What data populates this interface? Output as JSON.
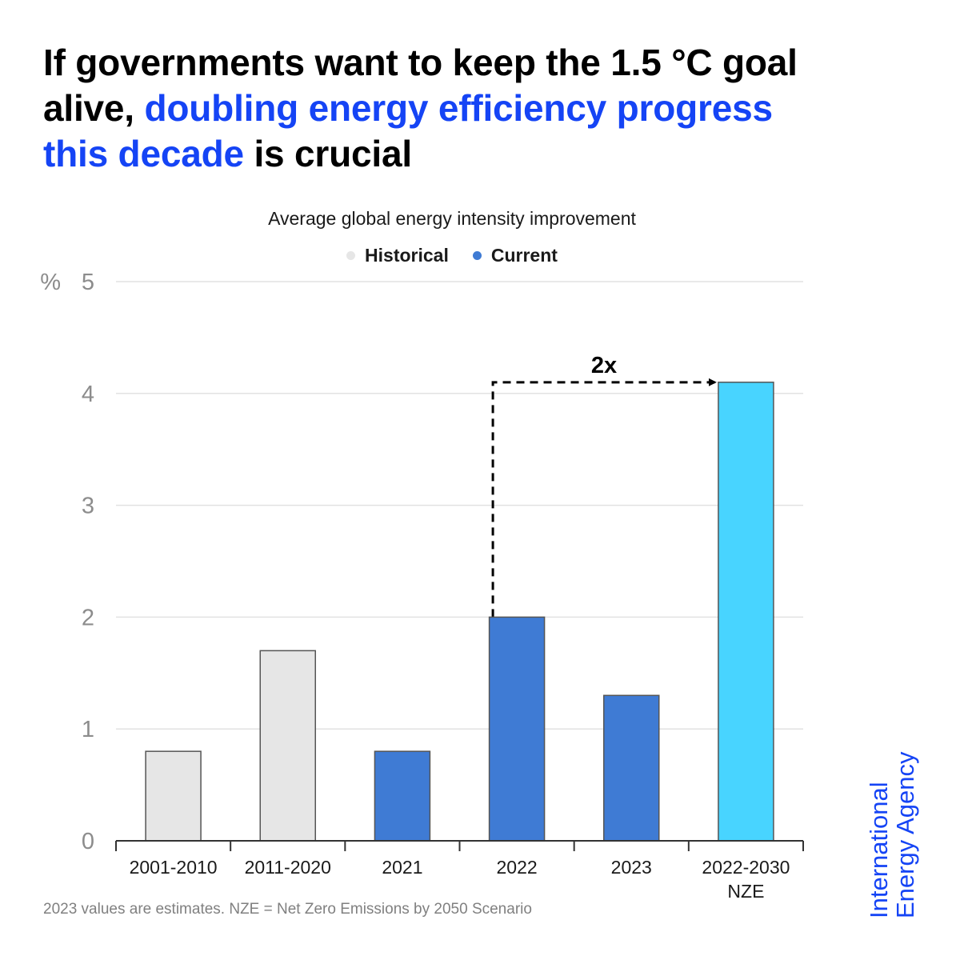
{
  "headline": {
    "part1": "If governments want to keep the 1.5 °C goal alive, ",
    "accent": "doubling energy efficiency progress this decade",
    "part2": " is crucial"
  },
  "subtitle": "Average global energy intensity improvement",
  "legend": [
    {
      "label": "Historical",
      "color": "#e6e6e6"
    },
    {
      "label": "Current",
      "color": "#3f7bd4"
    }
  ],
  "chart_data": {
    "type": "bar",
    "title": "Average global energy intensity improvement",
    "ylabel": "%",
    "ylim": [
      0,
      5
    ],
    "yticks": [
      0,
      1,
      2,
      3,
      4,
      5
    ],
    "grid": true,
    "categories": [
      "2001-2010",
      "2011-2020",
      "2021",
      "2022",
      "2023",
      "2022-2030 NZE"
    ],
    "category_labels": [
      [
        "2001-2010"
      ],
      [
        "2011-2020"
      ],
      [
        "2021"
      ],
      [
        "2022"
      ],
      [
        "2023"
      ],
      [
        "2022-2030",
        "NZE"
      ]
    ],
    "values": [
      0.8,
      1.7,
      0.8,
      2.0,
      1.3,
      4.1
    ],
    "bar_groups": [
      "Historical",
      "Historical",
      "Current",
      "Current",
      "Current",
      "NZE"
    ],
    "colors": {
      "Historical": "#e6e6e6",
      "Current": "#3f7bd4",
      "NZE": "#48d4ff",
      "bar_outline": "#555555",
      "grid": "#e2e2e2",
      "tick_text": "#8c8c8c",
      "axis": "#333333"
    },
    "annotation": {
      "text": "2x",
      "from_category": "2022",
      "to_category": "2022-2030 NZE"
    }
  },
  "footnote": "2023 values are estimates. NZE = Net Zero Emissions by 2050 Scenario",
  "brand": {
    "line1": "International",
    "line2": "Energy Agency"
  }
}
